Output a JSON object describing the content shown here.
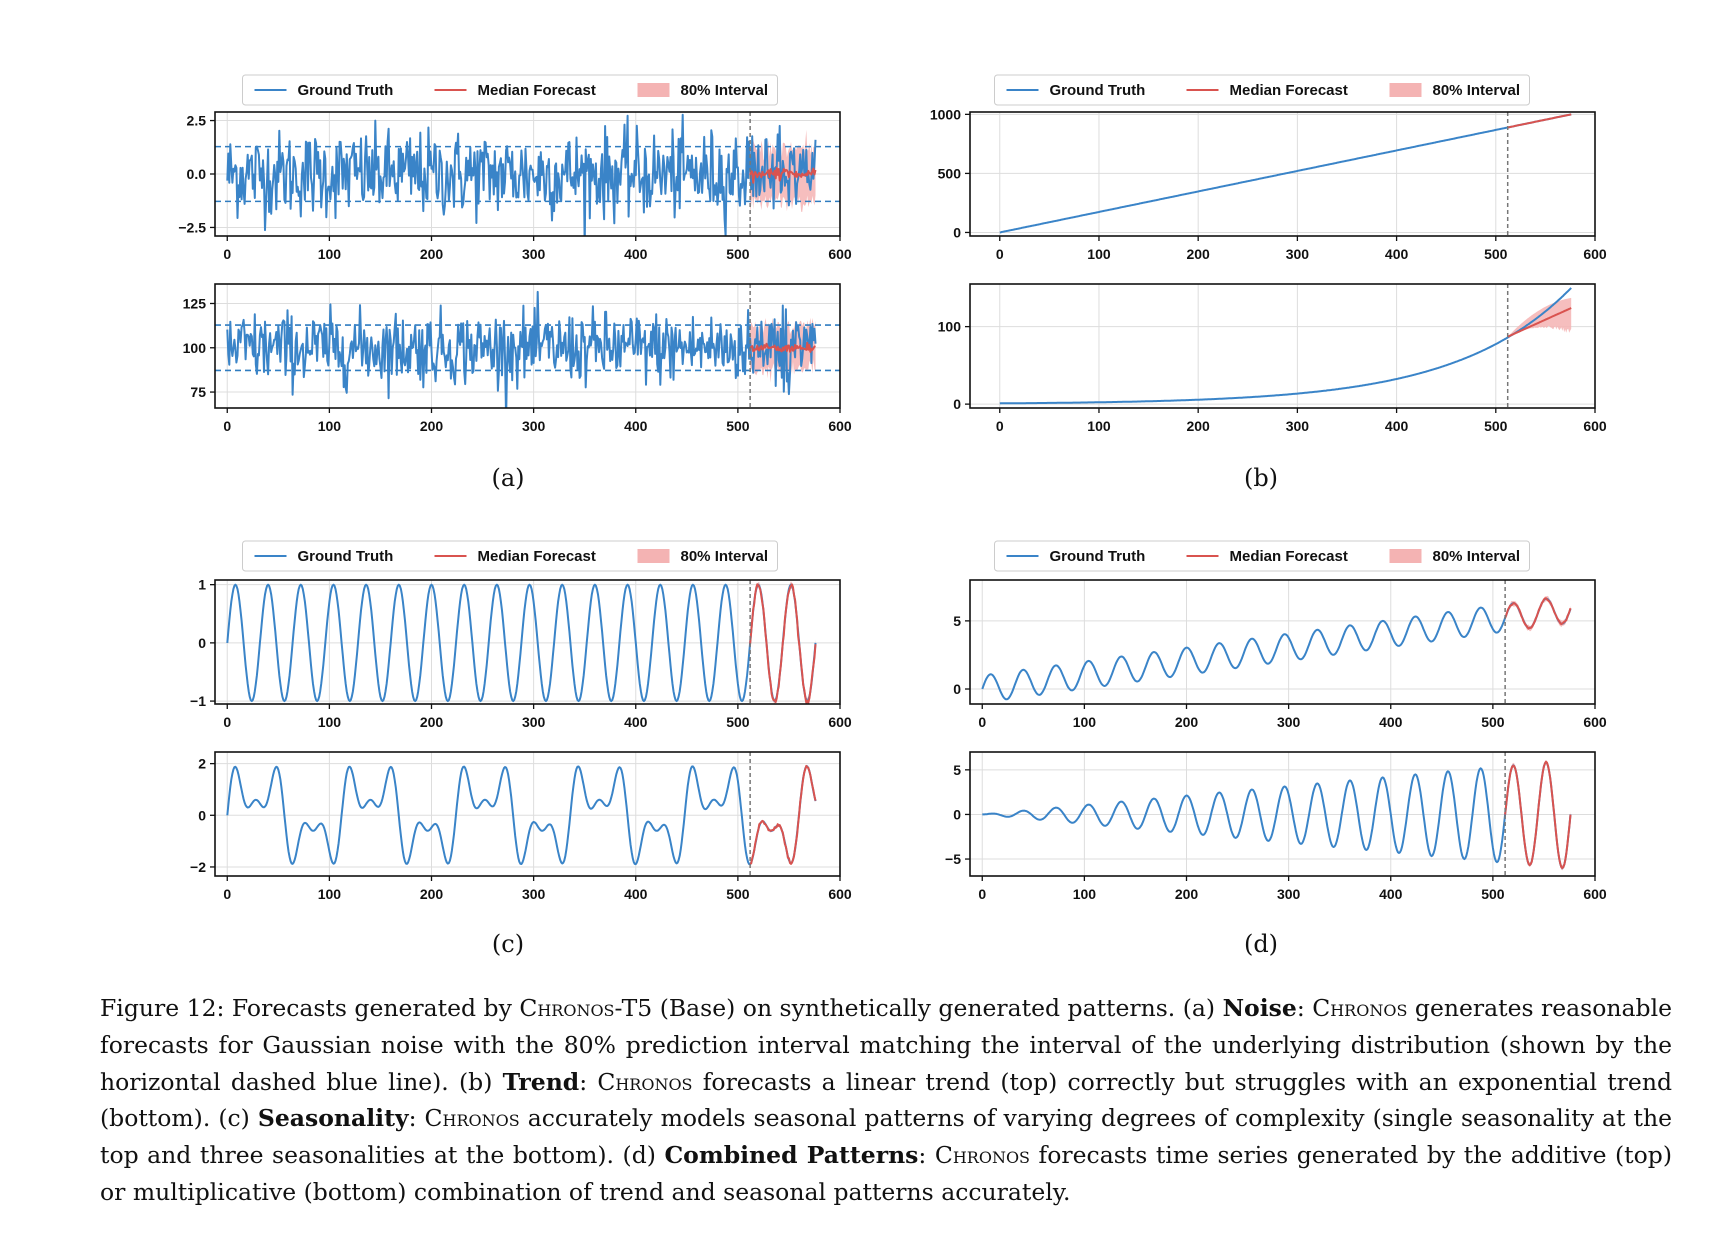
{
  "figure": {
    "legend_labels": [
      "Ground Truth",
      "Median Forecast",
      "80% Interval"
    ],
    "colors": {
      "ground_truth": "#3a84c8",
      "median": "#d9534f",
      "interval": "#f4b3b3",
      "dashed": "#2f7cc0",
      "vline": "#777777"
    },
    "subfigure_labels": [
      "(a)",
      "(b)",
      "(c)",
      "(d)"
    ]
  },
  "chart_data": [
    {
      "id": "a-top",
      "type": "line",
      "panel": "(a) top",
      "series": [
        "Ground Truth",
        "Median Forecast",
        "80% Interval"
      ],
      "xlim": [
        -12,
        600
      ],
      "ylim": [
        -2.9,
        2.9
      ],
      "xticks": [
        0,
        100,
        200,
        300,
        400,
        500,
        600
      ],
      "yticks": [
        -2.5,
        0.0,
        2.5
      ],
      "ytick_labels": [
        "−2.5",
        "0.0",
        "2.5"
      ],
      "xtick_labels": [
        "0",
        "100",
        "200",
        "300",
        "400",
        "500",
        "600"
      ],
      "pattern": "gaussian noise, mean 0, sd 1",
      "hlines": [
        -1.28,
        1.28
      ],
      "forecast_start": 512,
      "x_end": 576,
      "median": 0.0,
      "interval": [
        -1.25,
        1.25
      ]
    },
    {
      "id": "a-bottom",
      "type": "line",
      "panel": "(a) bottom",
      "series": [
        "Ground Truth",
        "Median Forecast",
        "80% Interval"
      ],
      "xlim": [
        -12,
        600
      ],
      "ylim": [
        66,
        136
      ],
      "xticks": [
        0,
        100,
        200,
        300,
        400,
        500,
        600
      ],
      "yticks": [
        75,
        100,
        125
      ],
      "ytick_labels": [
        "75",
        "100",
        "125"
      ],
      "xtick_labels": [
        "0",
        "100",
        "200",
        "300",
        "400",
        "500",
        "600"
      ],
      "pattern": "gaussian noise, mean 100, sd 10",
      "hlines": [
        87.2,
        112.8
      ],
      "forecast_start": 512,
      "x_end": 576,
      "median": 100,
      "interval": [
        87.5,
        112.5
      ]
    },
    {
      "id": "b-top",
      "type": "line",
      "panel": "(b) top",
      "series": [
        "Ground Truth",
        "Median Forecast",
        "80% Interval"
      ],
      "xlim": [
        -30,
        600
      ],
      "ylim": [
        -30,
        1020
      ],
      "xticks": [
        0,
        100,
        200,
        300,
        400,
        500,
        600
      ],
      "yticks": [
        0,
        500,
        1000
      ],
      "ytick_labels": [
        "0",
        "500",
        "1000"
      ],
      "xtick_labels": [
        "0",
        "100",
        "200",
        "300",
        "400",
        "500",
        "600"
      ],
      "pattern": "linear trend",
      "start": [
        0,
        0
      ],
      "end": [
        576,
        1000
      ],
      "forecast_start": 512,
      "x_end": 576
    },
    {
      "id": "b-bottom",
      "type": "line",
      "panel": "(b) bottom",
      "series": [
        "Ground Truth",
        "Median Forecast",
        "80% Interval"
      ],
      "xlim": [
        -30,
        600
      ],
      "ylim": [
        -5,
        155
      ],
      "xticks": [
        0,
        100,
        200,
        300,
        400,
        500,
        600
      ],
      "yticks": [
        0,
        100
      ],
      "ytick_labels": [
        "0",
        "100"
      ],
      "xtick_labels": [
        "0",
        "100",
        "200",
        "300",
        "400",
        "500",
        "600"
      ],
      "pattern": "exponential trend",
      "start": [
        0,
        1
      ],
      "value_at_512": 87,
      "end": [
        576,
        150
      ],
      "median_end": 124,
      "interval_end": [
        93,
        137
      ],
      "forecast_start": 512,
      "x_end": 576
    },
    {
      "id": "c-top",
      "type": "line",
      "panel": "(c) top",
      "series": [
        "Ground Truth",
        "Median Forecast",
        "80% Interval"
      ],
      "xlim": [
        -12,
        600
      ],
      "ylim": [
        -1.05,
        1.08
      ],
      "xticks": [
        0,
        100,
        200,
        300,
        400,
        500,
        600
      ],
      "yticks": [
        -1,
        0,
        1
      ],
      "ytick_labels": [
        "−1",
        "0",
        "1"
      ],
      "xtick_labels": [
        "0",
        "100",
        "200",
        "300",
        "400",
        "500",
        "600"
      ],
      "pattern": "sine wave",
      "amplitude": 1,
      "period": 32,
      "forecast_start": 512,
      "x_end": 576
    },
    {
      "id": "c-bottom",
      "type": "line",
      "panel": "(c) bottom",
      "series": [
        "Ground Truth",
        "Median Forecast",
        "80% Interval"
      ],
      "xlim": [
        -12,
        600
      ],
      "ylim": [
        -2.35,
        2.45
      ],
      "xticks": [
        0,
        100,
        200,
        300,
        400,
        500,
        600
      ],
      "yticks": [
        -2,
        0,
        2
      ],
      "ytick_labels": [
        "−2",
        "0",
        "2"
      ],
      "xtick_labels": [
        "0",
        "100",
        "200",
        "300",
        "400",
        "500",
        "600"
      ],
      "pattern": "sum of three seasonalities",
      "periods": [
        112,
        37.3,
        22.4
      ],
      "forecast_start": 512,
      "x_end": 576
    },
    {
      "id": "d-top",
      "type": "line",
      "panel": "(d) top",
      "series": [
        "Ground Truth",
        "Median Forecast",
        "80% Interval"
      ],
      "xlim": [
        -12,
        600
      ],
      "ylim": [
        -1.1,
        8.0
      ],
      "xticks": [
        0,
        100,
        200,
        300,
        400,
        500,
        600
      ],
      "yticks": [
        0,
        5
      ],
      "ytick_labels": [
        "0",
        "5"
      ],
      "xtick_labels": [
        "0",
        "100",
        "200",
        "300",
        "400",
        "500",
        "600"
      ],
      "pattern": "additive trend plus seasonality",
      "trend_slope": 0.0102,
      "amplitude": 1,
      "period": 32,
      "forecast_start": 512,
      "x_end": 576
    },
    {
      "id": "d-bottom",
      "type": "line",
      "panel": "(d) bottom",
      "series": [
        "Ground Truth",
        "Median Forecast",
        "80% Interval"
      ],
      "xlim": [
        -12,
        600
      ],
      "ylim": [
        -6.9,
        7.0
      ],
      "xticks": [
        0,
        100,
        200,
        300,
        400,
        500,
        600
      ],
      "yticks": [
        -5,
        0,
        5
      ],
      "ytick_labels": [
        "−5",
        "0",
        "5"
      ],
      "xtick_labels": [
        "0",
        "100",
        "200",
        "300",
        "400",
        "500",
        "600"
      ],
      "pattern": "multiplicative trend times seasonality",
      "amplitude_slope": 0.0106,
      "period": 32,
      "forecast_start": 512,
      "x_end": 576
    }
  ],
  "caption": {
    "p1": "Figure 12: Forecasts generated by ",
    "chronos": "Chronos",
    "t5": "-T5 (Base) on synthetically generated patterns.  (a) ",
    "noise_b": "Noise",
    "p2": ": ",
    "p3": " generates reasonable forecasts for Gaussian noise with the 80% prediction interval matching the interval of the underlying distribution (shown by the horizontal dashed blue line).  (b) ",
    "trend_b": "Trend",
    "p4": " forecasts a linear trend (top) correctly but struggles with an exponential trend (bottom).  (c) ",
    "season_b": "Seasonality",
    "p5": " accurately models seasonal patterns of varying degrees of complexity (single seasonality at the top and three seasonalities at the bottom). (d) ",
    "combined_b": "Combined Patterns",
    "p6": " forecasts time series generated by the additive (top) or multiplicative (bottom) combination of trend and seasonal patterns accurately."
  }
}
